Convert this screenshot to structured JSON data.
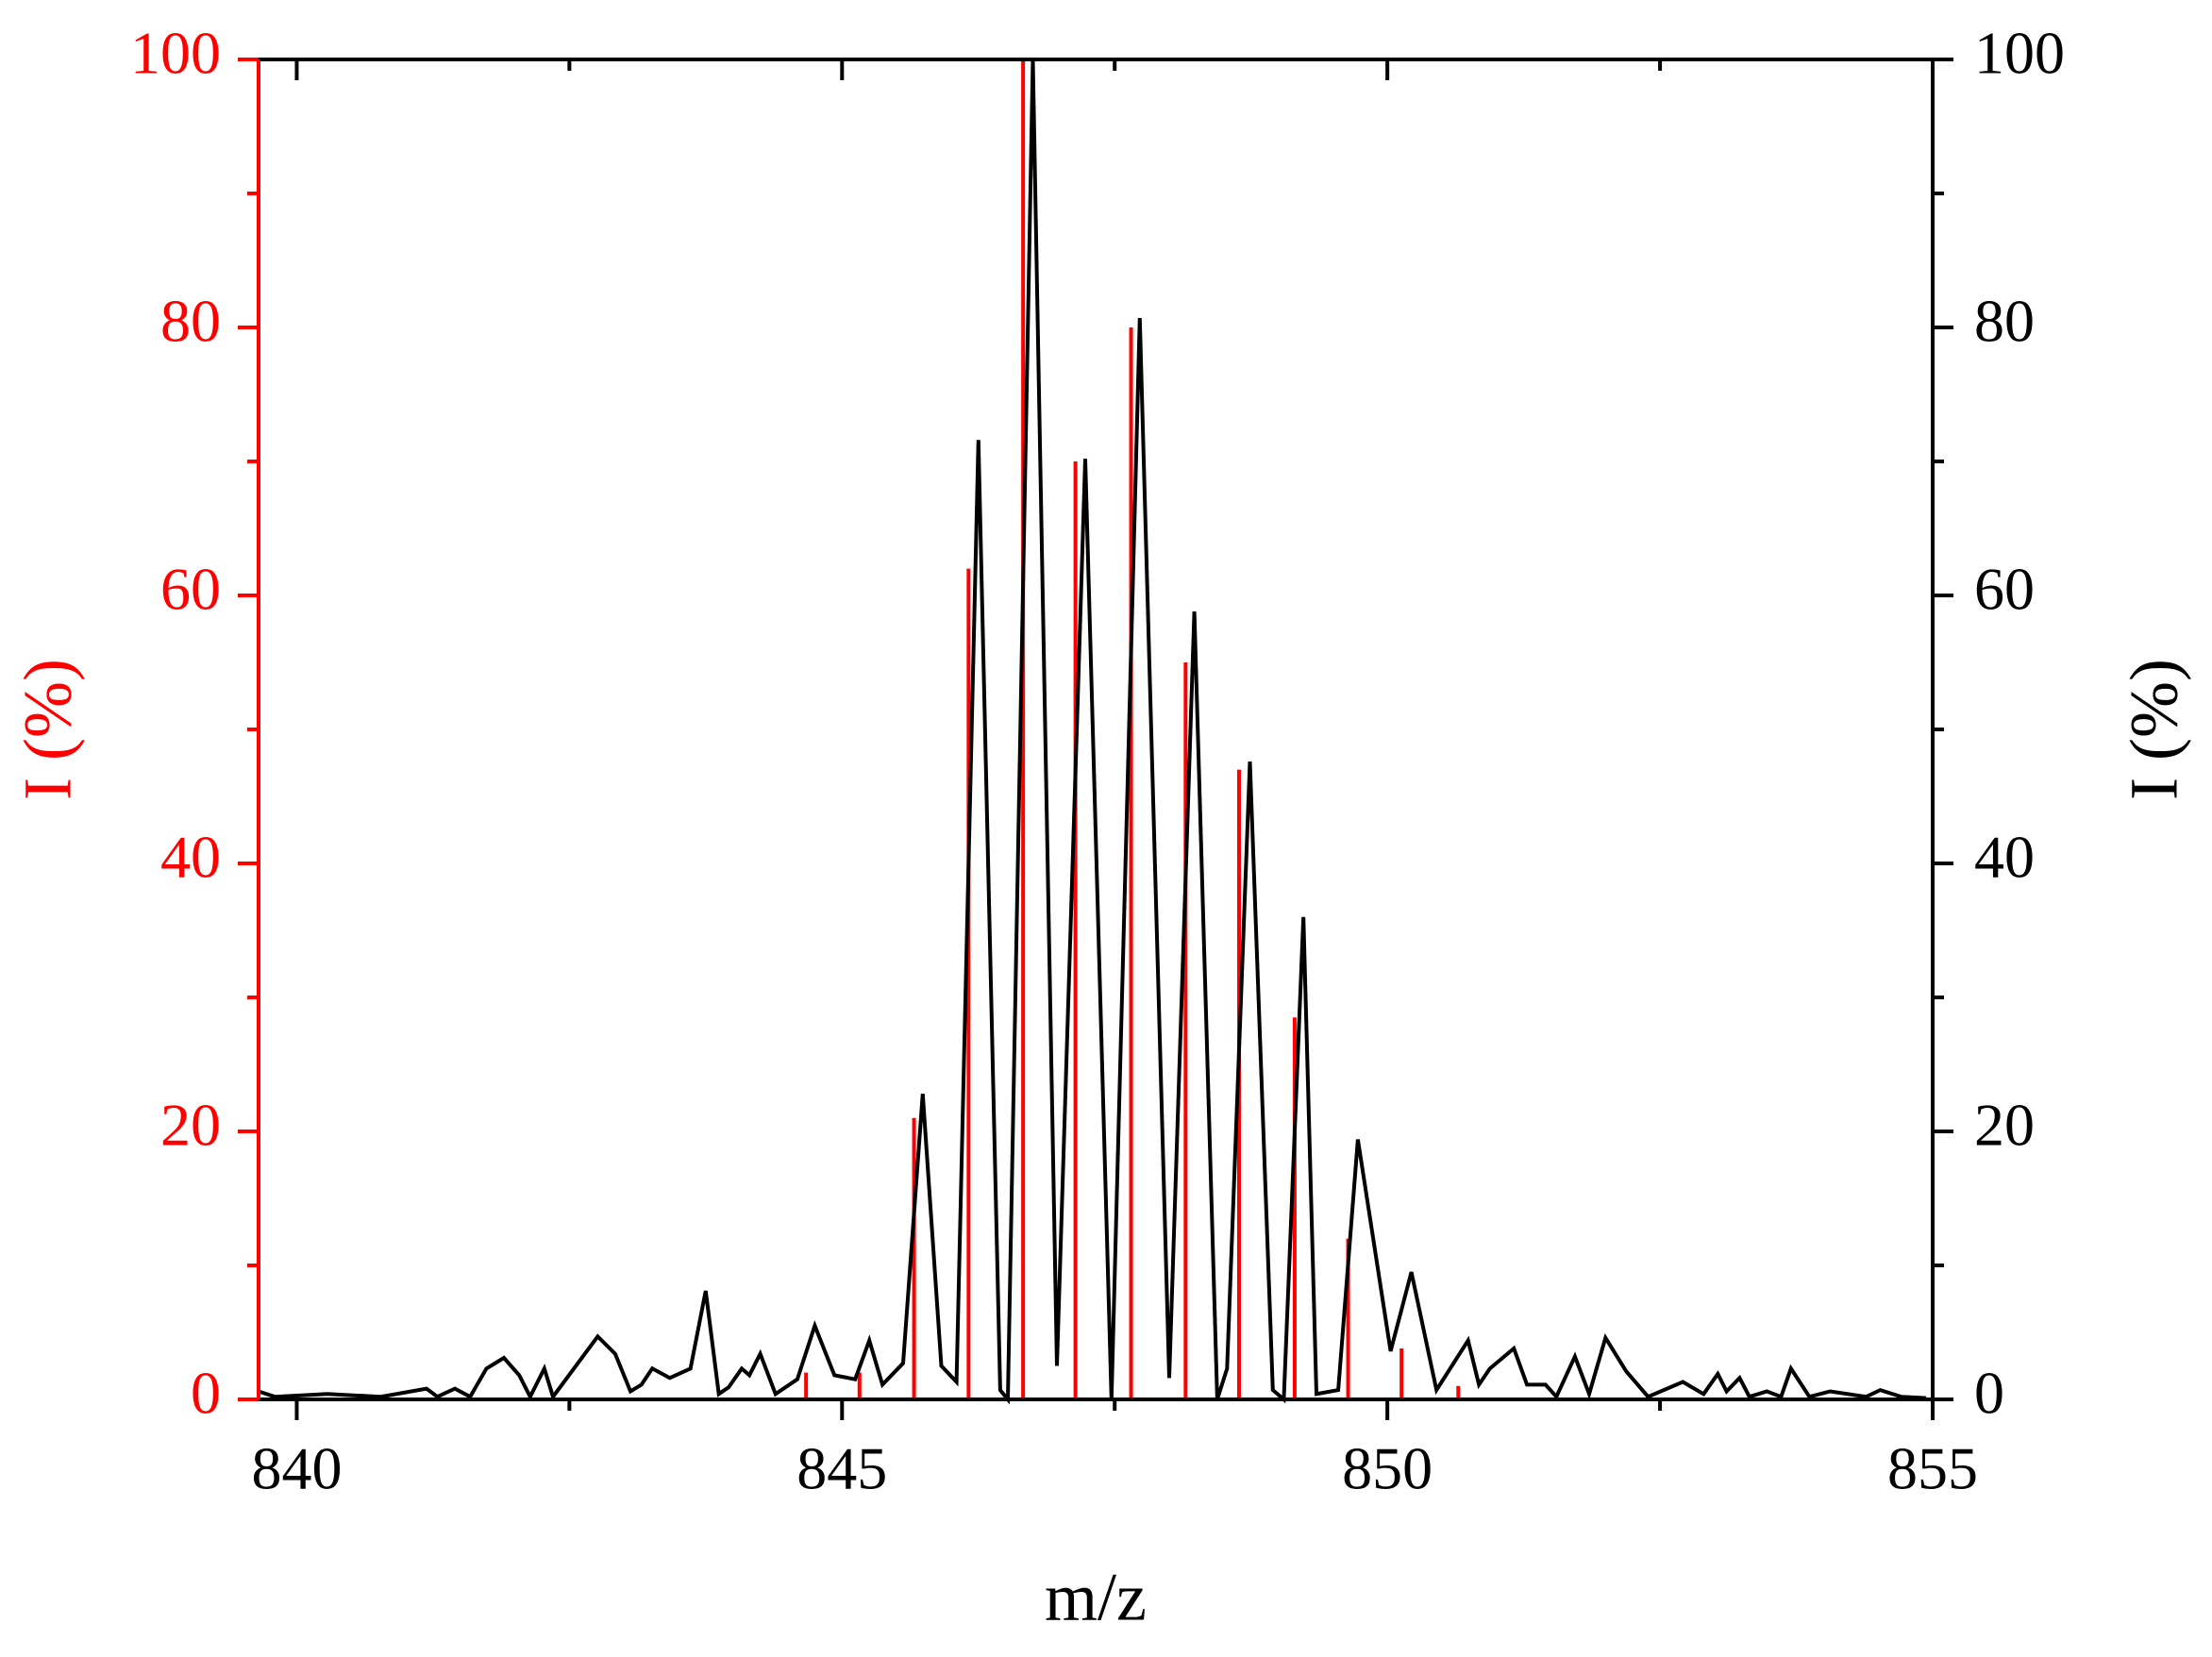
{
  "chart_data": {
    "type": "line",
    "xlabel": "m/z",
    "ylabel": "I (%)",
    "y2label": "I (%)",
    "xlim": [
      839.65,
      855
    ],
    "xticks": [
      840,
      845,
      850,
      855
    ],
    "xminorticks": [
      842.5,
      847.5,
      852.5
    ],
    "ylim": [
      0,
      100
    ],
    "yticks": [
      0,
      20,
      40,
      60,
      80,
      100
    ],
    "yminorticks": [
      10,
      30,
      50,
      70,
      90
    ],
    "y2lim": [
      0,
      100
    ],
    "y2ticks": [
      0,
      20,
      40,
      60,
      80,
      100
    ],
    "y2minorticks": [
      10,
      30,
      50,
      70,
      90
    ],
    "left_axis_color": "#ff0000",
    "right_axis_color": "#000000",
    "series": [
      {
        "mark": "stem",
        "color": "#ff0000",
        "axis": "y",
        "x": [
          844.67,
          845.16,
          845.66,
          846.16,
          846.66,
          847.14,
          847.65,
          848.15,
          848.64,
          849.15,
          849.64,
          850.13,
          850.65
        ],
        "values": [
          2,
          2,
          21,
          62,
          100,
          70,
          80,
          55,
          47,
          28.5,
          12,
          3.8,
          1
        ]
      },
      {
        "mark": "line",
        "color": "#000000",
        "axis": "y2",
        "x": [
          839.65,
          839.8,
          840.28,
          840.77,
          841.19,
          841.29,
          841.45,
          841.59,
          841.74,
          841.9,
          842.04,
          842.14,
          842.27,
          842.35,
          842.76,
          842.92,
          843.06,
          843.16,
          843.26,
          843.42,
          843.61,
          843.75,
          843.87,
          843.96,
          844.08,
          844.15,
          844.25,
          844.39,
          844.59,
          844.75,
          844.93,
          845.12,
          845.25,
          845.37,
          845.56,
          845.74,
          845.91,
          846.05,
          846.25,
          846.45,
          846.52,
          846.75,
          846.97,
          847.23,
          847.47,
          847.73,
          848.0,
          848.23,
          848.44,
          848.53,
          848.74,
          848.95,
          849.05,
          849.23,
          849.35,
          849.55,
          849.73,
          850.03,
          850.22,
          850.45,
          850.74,
          850.84,
          850.94,
          851.16,
          851.28,
          851.45,
          851.55,
          851.72,
          851.85,
          852.0,
          852.19,
          852.39,
          852.71,
          852.9,
          853.03,
          853.11,
          853.23,
          853.32,
          853.48,
          853.61,
          853.7,
          853.87,
          854.06,
          854.39,
          854.52,
          854.71,
          854.94
        ],
        "values": [
          0.6,
          0.2,
          0.4,
          0.2,
          0.8,
          0.2,
          0.8,
          0.2,
          2.3,
          3.1,
          1.8,
          0.2,
          2.3,
          0.2,
          4.7,
          3.4,
          0.6,
          1.1,
          2.3,
          1.6,
          2.3,
          8.1,
          0.4,
          0.9,
          2.3,
          1.8,
          3.4,
          0.4,
          1.5,
          5.5,
          1.8,
          1.5,
          4.4,
          1.1,
          2.7,
          22.8,
          2.5,
          1.3,
          71.6,
          0.7,
          0,
          100,
          2.5,
          70.2,
          0,
          80.7,
          1.6,
          58.8,
          0,
          2.3,
          47.6,
          0.7,
          0,
          36,
          0.4,
          0.7,
          19.4,
          3.6,
          9.5,
          0.7,
          4.4,
          1.1,
          2.3,
          3.8,
          1.1,
          1.1,
          0.2,
          3.2,
          0.4,
          4.6,
          2.1,
          0.2,
          1.3,
          0.4,
          1.9,
          0.6,
          1.6,
          0.2,
          0.6,
          0.2,
          2.3,
          0.2,
          0.6,
          0.2,
          0.7,
          0.2,
          0.1
        ]
      }
    ]
  }
}
